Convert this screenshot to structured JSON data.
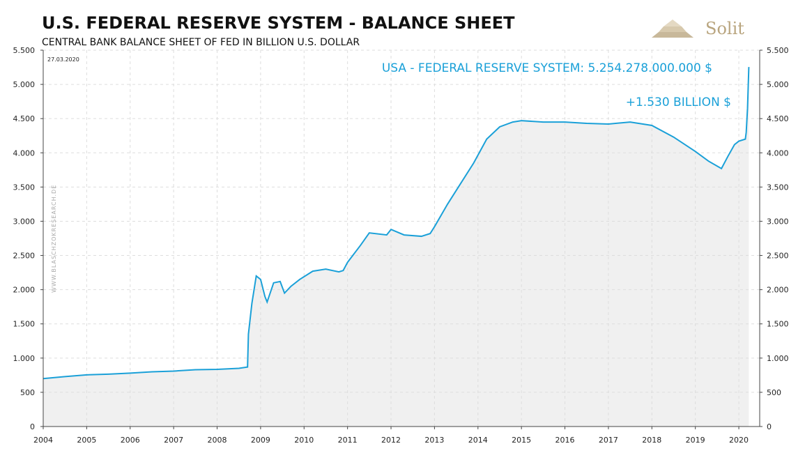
{
  "chart_data": {
    "type": "area",
    "title": "U.S. FEDERAL RESERVE SYSTEM - BALANCE SHEET",
    "subtitle": "CENTRAL BANK BALANCE SHEET OF FED IN BILLION U.S. DOLLAR",
    "date_note": "27.03.2020",
    "annotations": [
      "USA - FEDERAL RESERVE SYSTEM: 5.254.278.000.000 $",
      "+1.530 BILLION $"
    ],
    "watermark": "WWW.BLASCHZOKRESEARCH.DE",
    "logo": "Solit",
    "x": [
      2004.0,
      2004.5,
      2005.0,
      2005.5,
      2006.0,
      2006.5,
      2007.0,
      2007.5,
      2008.0,
      2008.5,
      2008.7,
      2008.72,
      2008.8,
      2008.9,
      2009.0,
      2009.1,
      2009.15,
      2009.3,
      2009.45,
      2009.55,
      2009.7,
      2009.9,
      2010.2,
      2010.5,
      2010.8,
      2010.9,
      2011.0,
      2011.3,
      2011.5,
      2011.9,
      2012.0,
      2012.3,
      2012.7,
      2012.9,
      2013.0,
      2013.3,
      2013.6,
      2013.9,
      2014.2,
      2014.5,
      2014.8,
      2015.0,
      2015.5,
      2016.0,
      2016.5,
      2017.0,
      2017.5,
      2018.0,
      2018.5,
      2019.0,
      2019.3,
      2019.6,
      2019.75,
      2019.9,
      2020.0,
      2020.15,
      2020.17,
      2020.2,
      2020.23
    ],
    "series": [
      {
        "name": "USA - FEDERAL RESERVE SYSTEM",
        "color": "#1aa0d8",
        "values": [
          700,
          730,
          755,
          765,
          780,
          800,
          810,
          830,
          835,
          850,
          870,
          1350,
          1800,
          2200,
          2150,
          1900,
          1820,
          2100,
          2120,
          1950,
          2050,
          2150,
          2270,
          2300,
          2260,
          2280,
          2400,
          2650,
          2830,
          2800,
          2880,
          2800,
          2780,
          2820,
          2920,
          3250,
          3550,
          3850,
          4200,
          4380,
          4450,
          4470,
          4450,
          4450,
          4430,
          4420,
          4450,
          4400,
          4230,
          4020,
          3880,
          3770,
          3950,
          4120,
          4170,
          4200,
          4300,
          4650,
          5254
        ]
      }
    ],
    "fill": "#f0f0f0",
    "xlim": [
      2004,
      2020.48
    ],
    "xticks": [
      2004,
      2005,
      2006,
      2007,
      2008,
      2009,
      2010,
      2011,
      2012,
      2013,
      2014,
      2015,
      2016,
      2017,
      2018,
      2019,
      2020
    ],
    "ylim": [
      0,
      5500
    ],
    "yticks": [
      0,
      500,
      {
        "value": 1000,
        "label": "1.000"
      },
      {
        "value": 1500,
        "label": "1.500"
      },
      {
        "value": 2000,
        "label": "2.000"
      },
      {
        "value": 2500,
        "label": "2.500"
      },
      {
        "value": 3000,
        "label": "3.000"
      },
      {
        "value": 3500,
        "label": "3.500"
      },
      {
        "value": 4000,
        "label": "4.000"
      },
      {
        "value": 4500,
        "label": "4.500"
      },
      {
        "value": 5000,
        "label": "5.000"
      },
      {
        "value": 5500,
        "label": "5.500"
      }
    ],
    "grid": true
  }
}
